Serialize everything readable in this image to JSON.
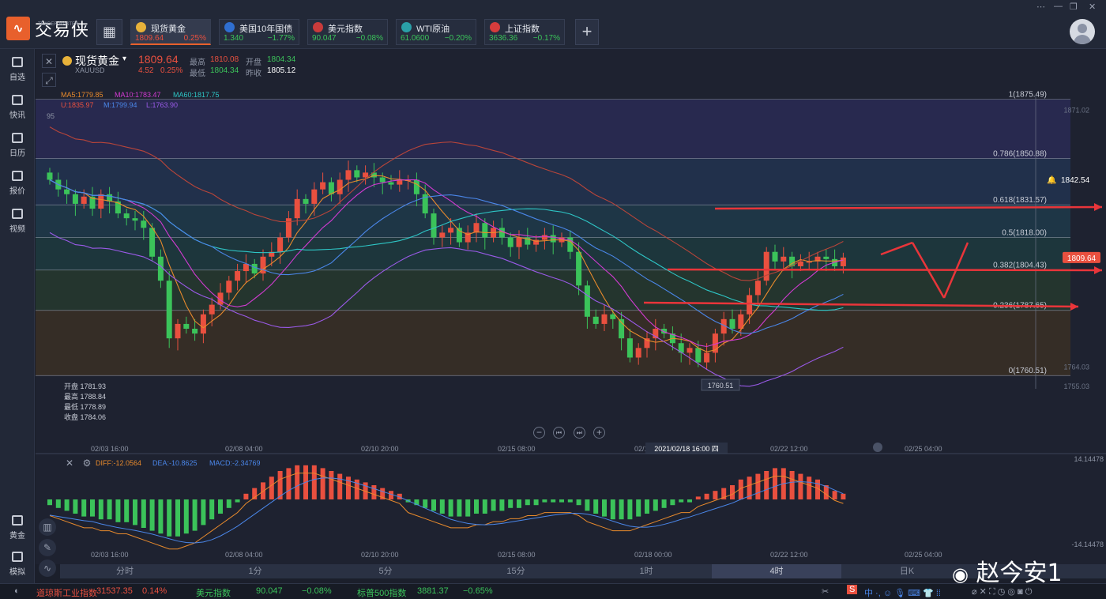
{
  "app": {
    "name": "交易侠",
    "sub": "TRADER MASTER",
    "grid_icon": "grid-icon",
    "add_icon": "plus-icon"
  },
  "tabs": [
    {
      "name": "现货黄金",
      "price": "1809.64",
      "pct": "0.25%",
      "dir": "up",
      "icon_color": "#e8b23a",
      "icon": "gold-icon"
    },
    {
      "name": "美国10年国债",
      "price": "1.340",
      "pct": "−1.77%",
      "dir": "down",
      "icon_color": "#2f6fd1",
      "icon": "bar-chart-icon"
    },
    {
      "name": "美元指数",
      "price": "90.047",
      "pct": "−0.08%",
      "dir": "down",
      "icon_color": "#c93b3b",
      "icon": "us-flag-icon"
    },
    {
      "name": "WTI原油",
      "price": "61.0600",
      "pct": "−0.20%",
      "dir": "down",
      "icon_color": "#2aa0a8",
      "icon": "oil-icon"
    },
    {
      "name": "上证指数",
      "price": "3636.36",
      "pct": "−0.17%",
      "dir": "down",
      "icon_color": "#d63c3c",
      "icon": "sse-icon"
    }
  ],
  "sidebar": [
    {
      "label": "自选",
      "icon": "bookmark-icon"
    },
    {
      "label": "快讯",
      "icon": "news-icon"
    },
    {
      "label": "日历",
      "icon": "calendar-icon"
    },
    {
      "label": "报价",
      "icon": "quote-icon"
    },
    {
      "label": "视频",
      "icon": "video-icon"
    },
    {
      "label": "黄金",
      "icon": "gold-calc-icon"
    },
    {
      "label": "模拟",
      "icon": "wallet-icon"
    }
  ],
  "symbol": {
    "name": "现货黄金",
    "code": "XAUUSD",
    "price": "1809.64",
    "change": "4.52",
    "pct": "0.25%",
    "high_label": "最高",
    "high": "1810.08",
    "open_label": "开盘",
    "open": "1804.34",
    "low_label": "最低",
    "low": "1804.34",
    "prev_label": "昨收",
    "prev": "1805.12"
  },
  "ma": {
    "ma5": "MA5:1779.85",
    "ma10": "MA10:1783.47",
    "ma60": "MA60:1817.75",
    "u": "U:1835.97",
    "m": "M:1799.94",
    "l": "L:1763.90"
  },
  "ohlc": {
    "open": "开盘 1781.93",
    "high": "最高 1788.84",
    "low": "最低 1778.89",
    "close": "收盘 1784.06"
  },
  "fib_levels": [
    {
      "label": "1(1875.49)",
      "value": 1875.49
    },
    {
      "label": "0.786(1850.88)",
      "value": 1850.88
    },
    {
      "label": "0.618(1831.57)",
      "value": 1831.57
    },
    {
      "label": "0.5(1818.00)",
      "value": 1818.0
    },
    {
      "label": "0.382(1804.43)",
      "value": 1804.43
    },
    {
      "label": "0.236(1787.65)",
      "value": 1787.65
    },
    {
      "label": "0(1760.51)",
      "value": 1760.51
    }
  ],
  "price_axis": {
    "top": "1871.02",
    "mid": "1764.03",
    "bottom": "1755.03",
    "bell_value": "1842.54",
    "current": "1809.64",
    "low_marker": "1760.51",
    "left_edge": "95"
  },
  "x_axis": [
    "02/03 16:00",
    "02/08 04:00",
    "02/10 20:00",
    "02/15 08:00",
    "02/18 00:00",
    "02/22 12:00",
    "02/25 04:00"
  ],
  "crosshair_label": "2021/02/18 16:00 四",
  "macd": {
    "diff": "DIFF:-12.0564",
    "dea": "DEA:-10.8625",
    "macd": "MACD:-2.34769",
    "top": "14.14478",
    "bottom": "-14.14478"
  },
  "timeframes": [
    "分时",
    "1分",
    "5分",
    "15分",
    "1时",
    "4时",
    "日K"
  ],
  "active_timeframe": "4时",
  "status": [
    {
      "name": "道琼斯工业指数",
      "value": "31537.35",
      "pct": "0.14%",
      "dir": "up"
    },
    {
      "name": "美元指数",
      "value": "90.047",
      "pct": "−0.08%",
      "dir": "down"
    },
    {
      "name": "标普500指数",
      "value": "3881.37",
      "pct": "−0.65%",
      "dir": "down"
    }
  ],
  "watermark": "赵今安1",
  "chart_data": {
    "type": "candlestick",
    "x": [
      "02/03 16:00",
      "02/08 04:00",
      "02/10 20:00",
      "02/15 08:00",
      "02/18 00:00",
      "02/22 12:00",
      "02/25 04:00"
    ],
    "ylim": [
      1755.03,
      1880
    ],
    "closes": [
      1842,
      1838,
      1836,
      1832,
      1835,
      1830,
      1836,
      1833,
      1828,
      1826,
      1825,
      1822,
      1810,
      1800,
      1776,
      1782,
      1780,
      1778,
      1786,
      1790,
      1795,
      1800,
      1804,
      1807,
      1803,
      1810,
      1812,
      1818,
      1826,
      1834,
      1832,
      1838,
      1841,
      1836,
      1842,
      1846,
      1843,
      1845,
      1843,
      1841,
      1840,
      1842,
      1842,
      1836,
      1828,
      1818,
      1820,
      1822,
      1816,
      1820,
      1824,
      1818,
      1822,
      1818,
      1814,
      1818,
      1815,
      1817,
      1819,
      1816,
      1818,
      1812,
      1798,
      1785,
      1782,
      1786,
      1784,
      1776,
      1768,
      1772,
      1776,
      1780,
      1778,
      1774,
      1770,
      1772,
      1766,
      1770,
      1778,
      1784,
      1780,
      1786,
      1794,
      1800,
      1812,
      1808,
      1810,
      1806,
      1808,
      1808,
      1810,
      1809,
      1806,
      1809.64
    ],
    "macd_hist": [
      -2,
      -3,
      -4,
      -5,
      -6,
      -6,
      -7,
      -7,
      -8,
      -8,
      -9,
      -10,
      -11,
      -12,
      -13,
      -13,
      -12,
      -11,
      -9,
      -7,
      -5,
      -3,
      -1,
      2,
      4,
      6,
      8,
      10,
      11,
      12,
      12,
      12,
      11,
      10,
      9,
      8,
      7,
      6,
      5,
      4,
      3,
      2,
      -1,
      -2,
      -3,
      -4,
      -5,
      -6,
      -6,
      -6,
      -5,
      -5,
      -4,
      -4,
      -3,
      -3,
      -2,
      -2,
      -1,
      -1,
      -1,
      -1,
      -2,
      -4,
      -5,
      -6,
      -7,
      -7,
      -7,
      -6,
      -5,
      -4,
      -3,
      -2,
      -1,
      -1,
      1,
      2,
      3,
      4,
      5,
      7,
      8,
      9,
      10,
      11,
      11,
      10,
      9,
      8,
      7,
      5,
      3,
      2
    ]
  }
}
